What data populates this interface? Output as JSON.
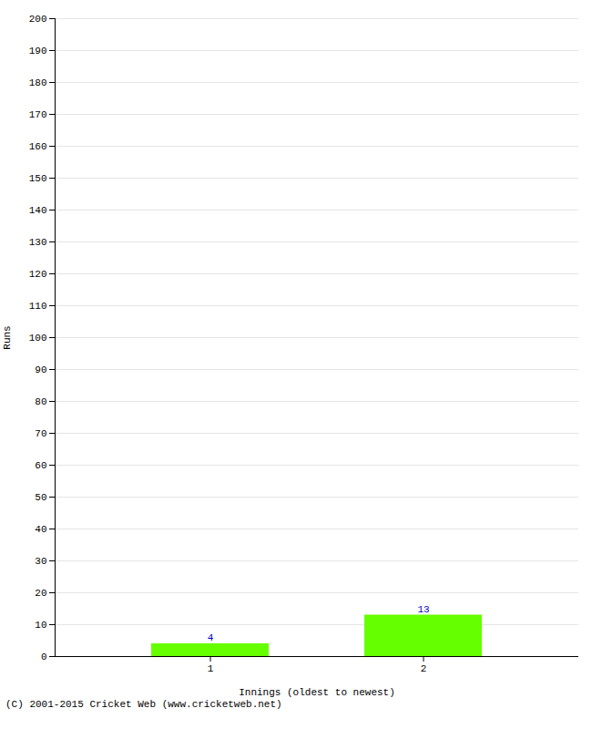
{
  "chart_data": {
    "type": "bar",
    "xlabel": "Innings (oldest to newest)",
    "ylabel": "Runs",
    "caption": "(C) 2001-2015 Cricket Web (www.cricketweb.net)",
    "categories": [
      1,
      2
    ],
    "values": [
      4,
      13
    ],
    "color": "#66ff00",
    "ylim": [
      0,
      200
    ],
    "yticks": [
      0,
      10,
      20,
      30,
      40,
      50,
      60,
      70,
      80,
      90,
      100,
      110,
      120,
      130,
      140,
      150,
      160,
      170,
      180,
      190,
      200
    ],
    "grid": true,
    "data_labels": true
  }
}
